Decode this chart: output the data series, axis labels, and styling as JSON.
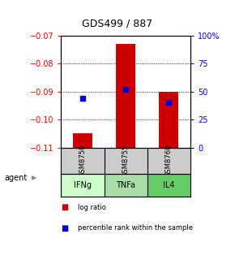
{
  "title": "GDS499 / 887",
  "categories": [
    "IFNg",
    "TNFa",
    "IL4"
  ],
  "gsm_labels": [
    "GSM8750",
    "GSM8755",
    "GSM8760"
  ],
  "log_ratios": [
    -0.105,
    -0.073,
    -0.09
  ],
  "baseline": -0.11,
  "percentile_ranks": [
    44,
    52,
    40
  ],
  "ylim_left": [
    -0.11,
    -0.07
  ],
  "ylim_right": [
    0,
    100
  ],
  "yticks_left": [
    -0.11,
    -0.1,
    -0.09,
    -0.08,
    -0.07
  ],
  "yticks_right": [
    0,
    25,
    50,
    75,
    100
  ],
  "bar_color": "#cc0000",
  "dot_color": "#0000cc",
  "bar_width": 0.45,
  "agent_colors": [
    "#ccffcc",
    "#aaddaa",
    "#66cc66"
  ],
  "gsm_bg": "#cccccc",
  "agent_label": "agent",
  "legend_log": "log ratio",
  "legend_pct": "percentile rank within the sample"
}
